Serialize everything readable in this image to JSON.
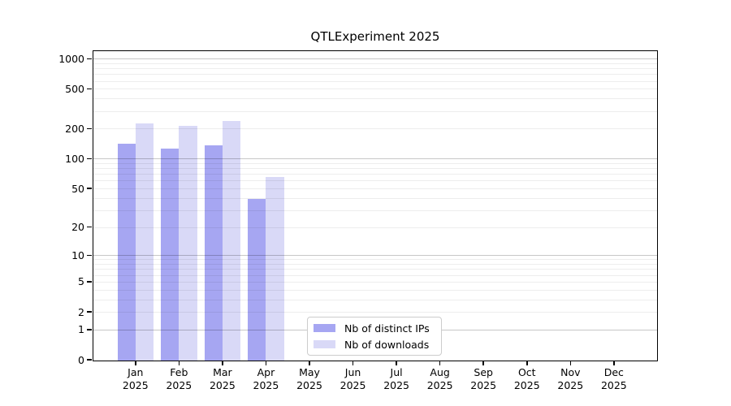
{
  "title": "QTLExperiment 2025",
  "chart_data": {
    "type": "bar",
    "title": "QTLExperiment 2025",
    "categories": [
      {
        "month": "Jan",
        "year": "2025"
      },
      {
        "month": "Feb",
        "year": "2025"
      },
      {
        "month": "Mar",
        "year": "2025"
      },
      {
        "month": "Apr",
        "year": "2025"
      },
      {
        "month": "May",
        "year": "2025"
      },
      {
        "month": "Jun",
        "year": "2025"
      },
      {
        "month": "Jul",
        "year": "2025"
      },
      {
        "month": "Aug",
        "year": "2025"
      },
      {
        "month": "Sep",
        "year": "2025"
      },
      {
        "month": "Oct",
        "year": "2025"
      },
      {
        "month": "Nov",
        "year": "2025"
      },
      {
        "month": "Dec",
        "year": "2025"
      }
    ],
    "series": [
      {
        "name": "Nb of distinct IPs",
        "color": "#a6a6f2",
        "values": [
          140,
          126,
          135,
          39,
          0,
          0,
          0,
          0,
          0,
          0,
          0,
          0
        ]
      },
      {
        "name": "Nb of downloads",
        "color": "#d9d9f7",
        "values": [
          225,
          212,
          241,
          65,
          0,
          0,
          0,
          0,
          0,
          0,
          0,
          0
        ]
      }
    ],
    "y_scale": "log1p",
    "y_ticks": [
      0,
      1,
      2,
      5,
      10,
      20,
      50,
      100,
      200,
      500,
      1000
    ],
    "ylim": [
      0,
      1200
    ],
    "grid": {
      "major_values": [
        1,
        10,
        100,
        1000
      ],
      "minor_values": [
        2,
        3,
        4,
        5,
        6,
        7,
        8,
        9,
        20,
        30,
        40,
        50,
        60,
        70,
        80,
        90,
        200,
        300,
        400,
        500,
        600,
        700,
        800,
        900
      ],
      "major_color": "rgba(0,0,0,0.22)",
      "minor_color": "rgba(0,0,0,0.07)"
    },
    "legend_position": "lower center",
    "axis_color": "#000000",
    "background_color": "#ffffff"
  }
}
